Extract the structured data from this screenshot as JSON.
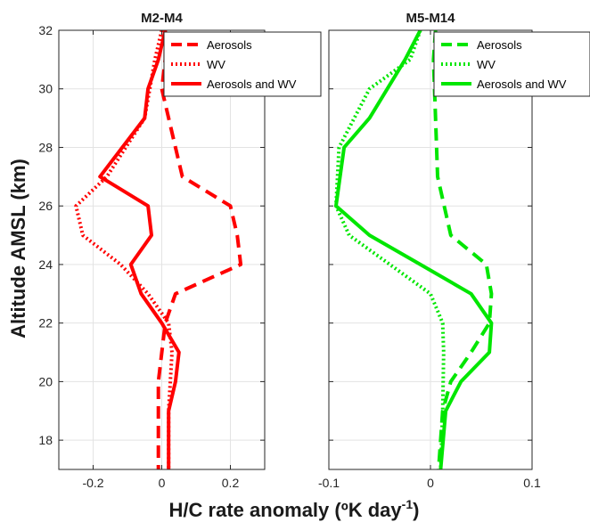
{
  "figure": {
    "ylabel": "Altitude AMSL (km)",
    "xlabel_main": "H/C rate anomaly (ºK day",
    "xlabel_sup": "-1",
    "xlabel_close": ")"
  },
  "chart_data": [
    {
      "type": "line",
      "title": "M2-M4",
      "xlim": [
        -0.3,
        0.3
      ],
      "ylim": [
        17,
        32
      ],
      "xticks": [
        -0.2,
        0,
        0.2
      ],
      "xtick_labels": [
        "-0.2",
        "0",
        "0.2"
      ],
      "yticks": [
        18,
        20,
        22,
        24,
        26,
        28,
        30,
        32
      ],
      "ytick_labels": [
        "18",
        "20",
        "22",
        "24",
        "26",
        "28",
        "30",
        "32"
      ],
      "grid": true,
      "legend_position": "top-right",
      "color": "#ff0000",
      "series": [
        {
          "name": "Aerosols",
          "style": "dashed",
          "x": [
            0.01,
            0.01,
            0.0,
            0.02,
            0.04,
            0.06,
            0.2,
            0.22,
            0.23,
            0.04,
            0.01,
            -0.01,
            -0.01
          ],
          "y": [
            32,
            31,
            30,
            29,
            28,
            27,
            26,
            25,
            24,
            23,
            22,
            20,
            17
          ]
        },
        {
          "name": "WV",
          "style": "dotted",
          "x": [
            0.0,
            -0.02,
            -0.05,
            -0.16,
            -0.25,
            -0.23,
            -0.12,
            -0.04,
            0.02,
            0.03,
            0.02,
            0.02
          ],
          "y": [
            32,
            31,
            29,
            27,
            26,
            25,
            24,
            23,
            22,
            21,
            19,
            17
          ]
        },
        {
          "name": "Aerosols and WV",
          "style": "solid",
          "x": [
            0.01,
            -0.01,
            -0.04,
            -0.05,
            -0.18,
            -0.04,
            -0.03,
            -0.09,
            -0.06,
            0.0,
            0.05,
            0.04,
            0.02,
            0.02
          ],
          "y": [
            32,
            31,
            30,
            29,
            27,
            26,
            25,
            24,
            23,
            22,
            21,
            20,
            19,
            17
          ]
        }
      ]
    },
    {
      "type": "line",
      "title": "M5-M14",
      "xlim": [
        -0.1,
        0.1
      ],
      "ylim": [
        17,
        32
      ],
      "xticks": [
        -0.1,
        0,
        0.1
      ],
      "xtick_labels": [
        "-0.1",
        "0",
        "0.1"
      ],
      "yticks": [
        18,
        20,
        22,
        24,
        26,
        28,
        30,
        32
      ],
      "ytick_labels": [],
      "grid": true,
      "legend_position": "top-right",
      "color": "#00e600",
      "series": [
        {
          "name": "Aerosols",
          "style": "dashed",
          "x": [
            0.005,
            0.003,
            0.005,
            0.007,
            0.02,
            0.055,
            0.06,
            0.058,
            0.04,
            0.02,
            0.012,
            0.01,
            0.008
          ],
          "y": [
            32,
            31,
            29,
            27,
            25,
            24,
            23,
            22,
            21,
            20,
            19,
            18,
            17
          ]
        },
        {
          "name": "WV",
          "style": "dotted",
          "x": [
            -0.01,
            -0.02,
            -0.06,
            -0.09,
            -0.093,
            -0.08,
            -0.04,
            0.0,
            0.012,
            0.013,
            0.012,
            0.01
          ],
          "y": [
            32,
            31,
            30,
            28,
            26,
            25,
            24,
            23,
            22,
            21,
            19,
            17
          ]
        },
        {
          "name": "Aerosols and WV",
          "style": "solid",
          "x": [
            -0.01,
            -0.025,
            -0.06,
            -0.085,
            -0.093,
            -0.06,
            -0.01,
            0.04,
            0.06,
            0.058,
            0.03,
            0.015,
            0.01
          ],
          "y": [
            32,
            31,
            29,
            28,
            26,
            25,
            24,
            23,
            22,
            21,
            20,
            19,
            17
          ]
        }
      ]
    }
  ]
}
